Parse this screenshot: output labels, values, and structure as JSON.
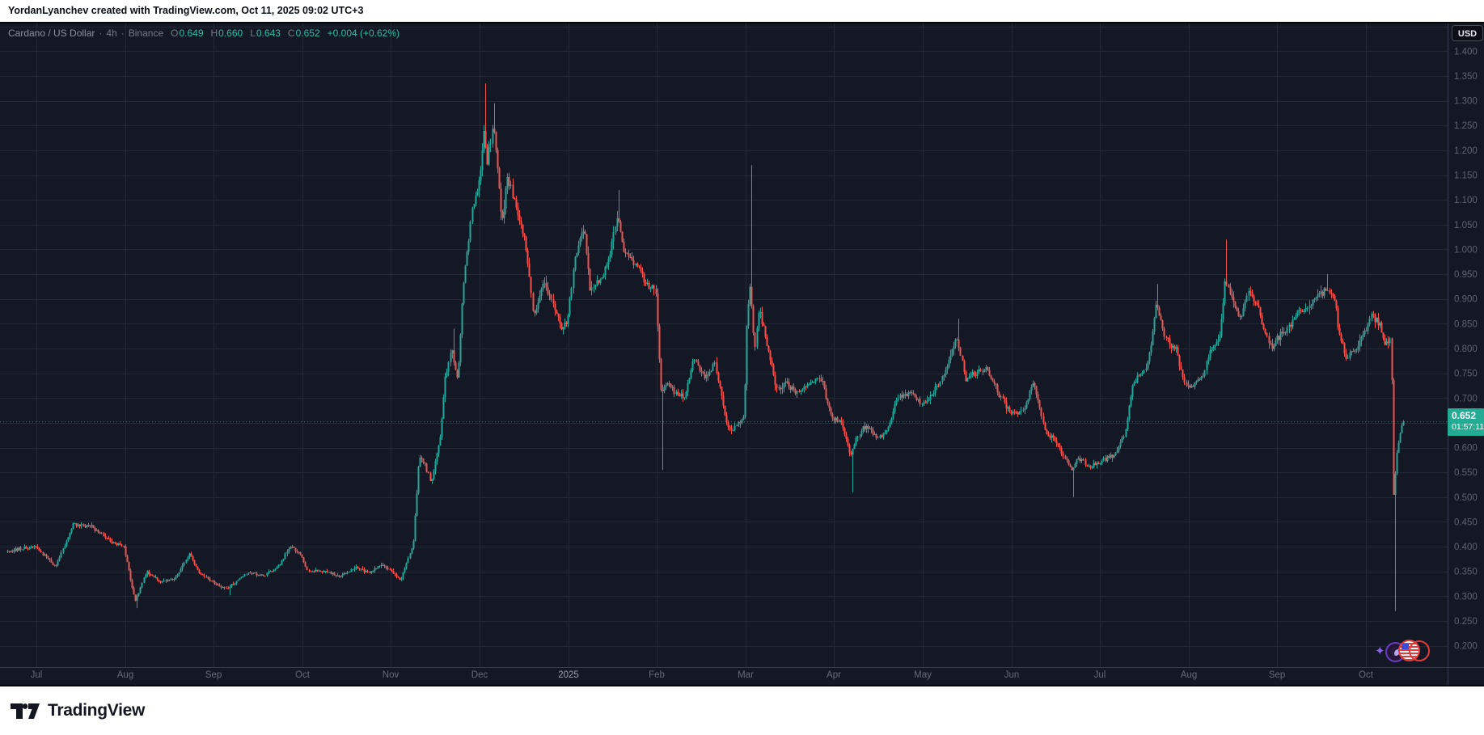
{
  "attribution": "YordanLyanchev created with TradingView.com, Oct 11, 2025 09:02 UTC+3",
  "legend": {
    "title": "Cardano / US Dollar",
    "sep": "·",
    "interval": "4h",
    "exchange": "Binance",
    "o_label": "O",
    "o": "0.649",
    "h_label": "H",
    "h": "0.660",
    "l_label": "L",
    "l": "0.643",
    "c_label": "C",
    "c": "0.652",
    "change": "+0.004 (+0.62%)"
  },
  "currency_button": "USD",
  "price_label": {
    "price": "0.652",
    "countdown": "01:57:11"
  },
  "footer_brand": "TradingView",
  "chart_data": {
    "type": "candlestick",
    "title": "Cardano / US Dollar",
    "interval": "4h",
    "exchange": "Binance",
    "last": {
      "open": 0.649,
      "high": 0.66,
      "low": 0.643,
      "close": 0.652,
      "change": "+0.004 (+0.62%)"
    },
    "x_ticks": [
      "Jul",
      "Aug",
      "Sep",
      "Oct",
      "Nov",
      "Dec",
      "2025",
      "Feb",
      "Mar",
      "Apr",
      "May",
      "Jun",
      "Jul",
      "Aug",
      "Sep",
      "Oct"
    ],
    "y_ticks": [
      "1.400",
      "1.350",
      "1.300",
      "1.250",
      "1.200",
      "1.150",
      "1.100",
      "1.050",
      "1.000",
      "0.950",
      "0.900",
      "0.850",
      "0.800",
      "0.750",
      "0.700",
      "0.650",
      "0.600",
      "0.550",
      "0.500",
      "0.450",
      "0.400",
      "0.350",
      "0.300",
      "0.250",
      "0.200"
    ],
    "ylim": [
      0.18,
      1.46
    ],
    "grid": true,
    "colors": {
      "up": "#26a69a",
      "down": "#f05350",
      "price_line": "#2e9d8e",
      "price_label_bg": "#23ab94",
      "grid": "#222836",
      "axis_border": "#363c4e"
    },
    "close_path": [
      [
        -0.33,
        0.39
      ],
      [
        0,
        0.4
      ],
      [
        0.23,
        0.36
      ],
      [
        0.43,
        0.445
      ],
      [
        0.65,
        0.44
      ],
      [
        0.84,
        0.41
      ],
      [
        1.0,
        0.4
      ],
      [
        1.13,
        0.29
      ],
      [
        1.26,
        0.35
      ],
      [
        1.42,
        0.33
      ],
      [
        1.58,
        0.335
      ],
      [
        1.74,
        0.385
      ],
      [
        1.87,
        0.345
      ],
      [
        2.0,
        0.33
      ],
      [
        2.17,
        0.315
      ],
      [
        2.4,
        0.35
      ],
      [
        2.57,
        0.34
      ],
      [
        2.77,
        0.365
      ],
      [
        2.87,
        0.4
      ],
      [
        3.0,
        0.385
      ],
      [
        3.08,
        0.35
      ],
      [
        3.23,
        0.352
      ],
      [
        3.45,
        0.34
      ],
      [
        3.61,
        0.357
      ],
      [
        3.77,
        0.348
      ],
      [
        3.9,
        0.362
      ],
      [
        4.0,
        0.355
      ],
      [
        4.13,
        0.332
      ],
      [
        4.27,
        0.41
      ],
      [
        4.33,
        0.58
      ],
      [
        4.4,
        0.565
      ],
      [
        4.47,
        0.53
      ],
      [
        4.57,
        0.62
      ],
      [
        4.63,
        0.74
      ],
      [
        4.7,
        0.8
      ],
      [
        4.77,
        0.735
      ],
      [
        4.83,
        0.92
      ],
      [
        4.93,
        1.08
      ],
      [
        5.0,
        1.12
      ],
      [
        5.07,
        1.24
      ],
      [
        5.1,
        1.17
      ],
      [
        5.17,
        1.26
      ],
      [
        5.27,
        1.05
      ],
      [
        5.33,
        1.15
      ],
      [
        5.43,
        1.08
      ],
      [
        5.53,
        1.02
      ],
      [
        5.63,
        0.86
      ],
      [
        5.73,
        0.93
      ],
      [
        5.83,
        0.9
      ],
      [
        5.93,
        0.84
      ],
      [
        6.0,
        0.85
      ],
      [
        6.1,
        0.99
      ],
      [
        6.2,
        1.05
      ],
      [
        6.26,
        0.92
      ],
      [
        6.4,
        0.94
      ],
      [
        6.5,
        1.0
      ],
      [
        6.57,
        1.07
      ],
      [
        6.65,
        0.99
      ],
      [
        6.78,
        0.97
      ],
      [
        6.9,
        0.93
      ],
      [
        7.0,
        0.92
      ],
      [
        7.065,
        0.7
      ],
      [
        7.13,
        0.73
      ],
      [
        7.23,
        0.71
      ],
      [
        7.33,
        0.7
      ],
      [
        7.43,
        0.78
      ],
      [
        7.57,
        0.74
      ],
      [
        7.67,
        0.77
      ],
      [
        7.8,
        0.65
      ],
      [
        7.87,
        0.635
      ],
      [
        8.0,
        0.66
      ],
      [
        8.03,
        0.85
      ],
      [
        8.07,
        0.93
      ],
      [
        8.12,
        0.8
      ],
      [
        8.17,
        0.88
      ],
      [
        8.27,
        0.8
      ],
      [
        8.37,
        0.72
      ],
      [
        8.47,
        0.73
      ],
      [
        8.6,
        0.71
      ],
      [
        8.73,
        0.73
      ],
      [
        8.87,
        0.74
      ],
      [
        8.97,
        0.67
      ],
      [
        9.0,
        0.66
      ],
      [
        9.1,
        0.65
      ],
      [
        9.2,
        0.58
      ],
      [
        9.27,
        0.62
      ],
      [
        9.37,
        0.645
      ],
      [
        9.5,
        0.62
      ],
      [
        9.63,
        0.64
      ],
      [
        9.73,
        0.7
      ],
      [
        9.87,
        0.71
      ],
      [
        10.0,
        0.69
      ],
      [
        10.1,
        0.7
      ],
      [
        10.23,
        0.74
      ],
      [
        10.33,
        0.79
      ],
      [
        10.4,
        0.82
      ],
      [
        10.5,
        0.74
      ],
      [
        10.6,
        0.75
      ],
      [
        10.73,
        0.76
      ],
      [
        10.87,
        0.71
      ],
      [
        10.97,
        0.68
      ],
      [
        11.0,
        0.67
      ],
      [
        11.13,
        0.67
      ],
      [
        11.27,
        0.73
      ],
      [
        11.4,
        0.63
      ],
      [
        11.53,
        0.61
      ],
      [
        11.7,
        0.55
      ],
      [
        11.77,
        0.58
      ],
      [
        11.9,
        0.56
      ],
      [
        12.0,
        0.57
      ],
      [
        12.1,
        0.58
      ],
      [
        12.2,
        0.59
      ],
      [
        12.3,
        0.63
      ],
      [
        12.37,
        0.72
      ],
      [
        12.43,
        0.74
      ],
      [
        12.53,
        0.76
      ],
      [
        12.6,
        0.82
      ],
      [
        12.65,
        0.89
      ],
      [
        12.75,
        0.82
      ],
      [
        12.87,
        0.8
      ],
      [
        12.97,
        0.73
      ],
      [
        13.03,
        0.72
      ],
      [
        13.17,
        0.74
      ],
      [
        13.27,
        0.8
      ],
      [
        13.37,
        0.82
      ],
      [
        13.43,
        0.94
      ],
      [
        13.5,
        0.9
      ],
      [
        13.6,
        0.86
      ],
      [
        13.7,
        0.92
      ],
      [
        13.8,
        0.88
      ],
      [
        13.9,
        0.82
      ],
      [
        13.97,
        0.8
      ],
      [
        14.0,
        0.82
      ],
      [
        14.1,
        0.83
      ],
      [
        14.23,
        0.87
      ],
      [
        14.37,
        0.88
      ],
      [
        14.43,
        0.9
      ],
      [
        14.57,
        0.92
      ],
      [
        14.67,
        0.9
      ],
      [
        14.7,
        0.84
      ],
      [
        14.8,
        0.78
      ],
      [
        14.9,
        0.8
      ],
      [
        15.0,
        0.83
      ],
      [
        15.07,
        0.87
      ],
      [
        15.17,
        0.85
      ],
      [
        15.23,
        0.81
      ],
      [
        15.3,
        0.82
      ],
      [
        15.325,
        0.5
      ],
      [
        15.37,
        0.6
      ],
      [
        15.43,
        0.652
      ]
    ],
    "spike_wicks": [
      {
        "m": 1.13,
        "low": 0.276
      },
      {
        "m": 2.17,
        "low": 0.302
      },
      {
        "m": 4.7,
        "high": 0.84
      },
      {
        "m": 5.07,
        "high": 1.335
      },
      {
        "m": 5.17,
        "high": 1.295
      },
      {
        "m": 6.57,
        "high": 1.12
      },
      {
        "m": 7.065,
        "low": 0.555
      },
      {
        "m": 8.07,
        "high": 1.17
      },
      {
        "m": 9.2,
        "low": 0.51
      },
      {
        "m": 10.4,
        "high": 0.86
      },
      {
        "m": 11.7,
        "low": 0.5
      },
      {
        "m": 12.65,
        "high": 0.93
      },
      {
        "m": 13.43,
        "high": 1.02
      },
      {
        "m": 14.57,
        "high": 0.95
      },
      {
        "m": 15.325,
        "low": 0.27
      }
    ]
  }
}
